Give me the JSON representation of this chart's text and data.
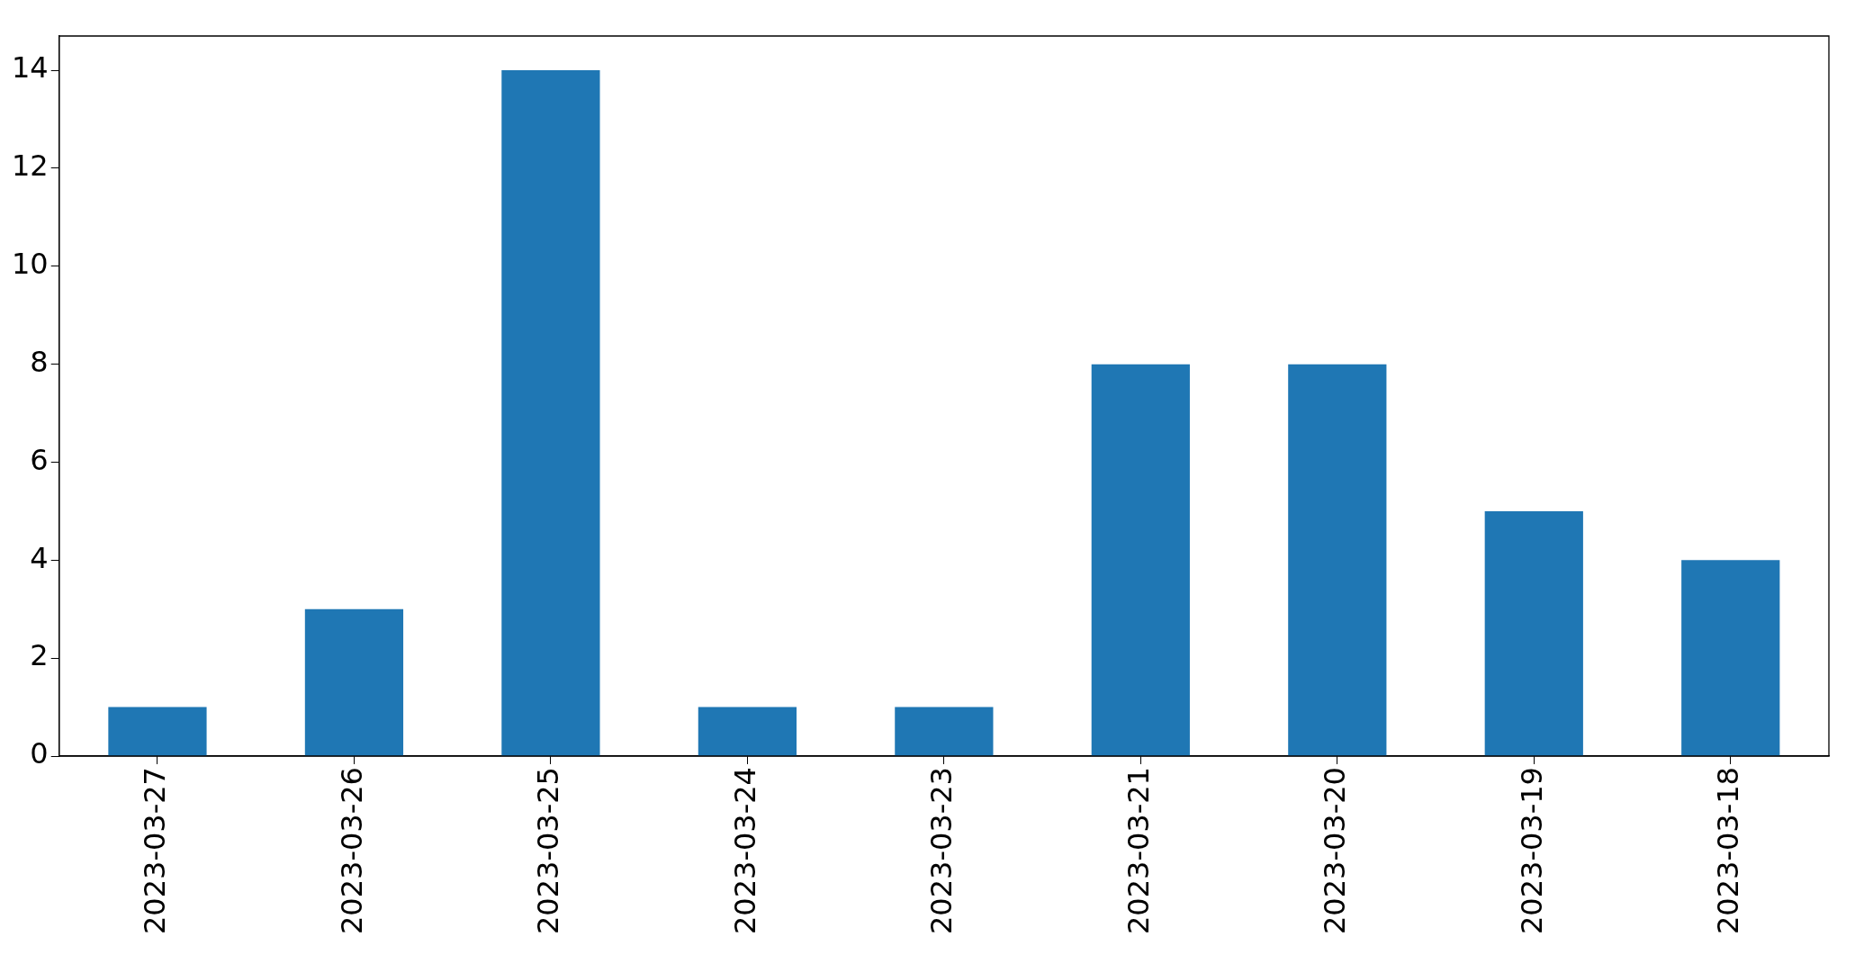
{
  "chart_data": {
    "type": "bar",
    "categories": [
      "2023-03-27",
      "2023-03-26",
      "2023-03-25",
      "2023-03-24",
      "2023-03-23",
      "2023-03-21",
      "2023-03-20",
      "2023-03-19",
      "2023-03-18"
    ],
    "values": [
      1,
      3,
      14,
      1,
      1,
      8,
      8,
      5,
      4
    ],
    "color": "#1f77b4",
    "ylim": [
      0,
      14.7
    ],
    "yticks": [
      0,
      2,
      4,
      6,
      8,
      10,
      12,
      14
    ]
  }
}
